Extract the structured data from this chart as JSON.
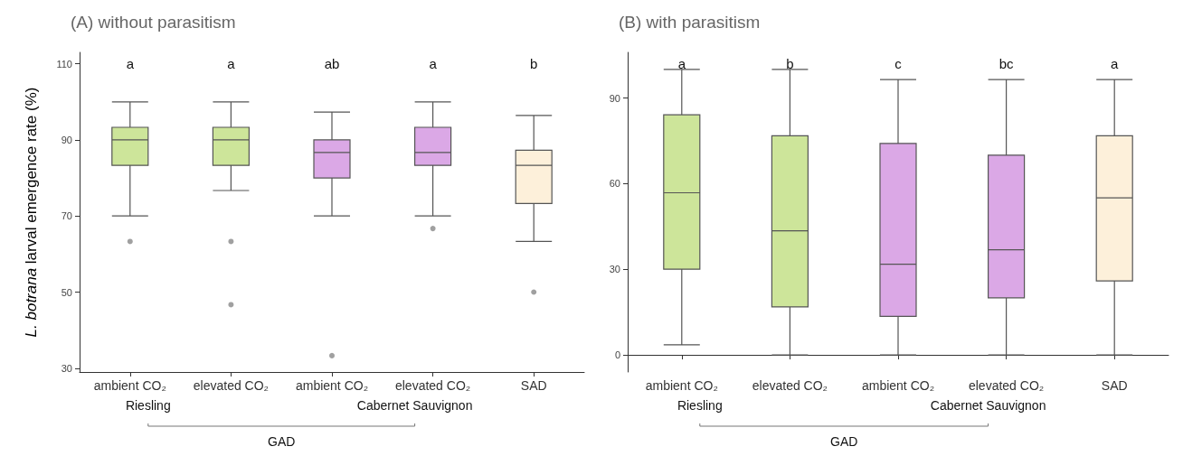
{
  "chart_data": [
    {
      "type": "box",
      "title": "(A) without parasitism",
      "ylabel": "L. botrana larval emergence rate (%)",
      "categories": [
        "ambient CO₂",
        "elevated CO₂",
        "ambient CO₂",
        "elevated CO₂",
        "SAD"
      ],
      "colors": [
        "#cde59a",
        "#cde59a",
        "#dba8e6",
        "#dba8e6",
        "#fdf0da"
      ],
      "boxes": [
        {
          "low": 70,
          "q1": 83.3,
          "median": 90,
          "q3": 93.3,
          "high": 100,
          "outliers": [
            63.3
          ]
        },
        {
          "low": 76.7,
          "q1": 83.3,
          "median": 90,
          "q3": 93.3,
          "high": 100,
          "outliers": [
            63.3,
            46.7
          ]
        },
        {
          "low": 70,
          "q1": 80,
          "median": 86.7,
          "q3": 90,
          "high": 97.3,
          "outliers": [
            33.3
          ]
        },
        {
          "low": 70,
          "q1": 83.3,
          "median": 86.7,
          "q3": 93.3,
          "high": 100,
          "outliers": [
            66.7
          ]
        },
        {
          "low": 63.3,
          "q1": 73.3,
          "median": 83.3,
          "q3": 87.3,
          "high": 96.4,
          "outliers": [
            50
          ]
        }
      ],
      "ylim": [
        29,
        113
      ],
      "yticks": [
        30,
        50,
        70,
        90,
        110
      ],
      "grid": false,
      "annotations": [
        "a",
        "a",
        "ab",
        "a",
        "b",
        "Riesling",
        "Cabernet Sauvignon",
        "GAD"
      ]
    },
    {
      "type": "box",
      "title": "(B) with parasitism",
      "categories": [
        "ambient CO₂",
        "elevated CO₂",
        "ambient CO₂",
        "elevated CO₂",
        "SAD"
      ],
      "colors": [
        "#cde59a",
        "#cde59a",
        "#dba8e6",
        "#dba8e6",
        "#fdf0da"
      ],
      "boxes": [
        {
          "low": 3.5,
          "q1": 30,
          "median": 56.8,
          "q3": 84.1,
          "high": 100
        },
        {
          "low": 0,
          "q1": 16.8,
          "median": 43.5,
          "q3": 76.8,
          "high": 100
        },
        {
          "low": 0,
          "q1": 13.5,
          "median": 31.8,
          "q3": 74.1,
          "high": 96.5
        },
        {
          "low": 0,
          "q1": 20,
          "median": 36.8,
          "q3": 70,
          "high": 96.5
        },
        {
          "low": 0,
          "q1": 25.9,
          "median": 55,
          "q3": 76.8,
          "high": 96.5
        }
      ],
      "ylim": [
        -6,
        106
      ],
      "yticks": [
        0,
        30,
        60,
        90
      ],
      "grid": false,
      "annotations": [
        "a",
        "b",
        "c",
        "bc",
        "a",
        "Riesling",
        "Cabernet Sauvignon",
        "GAD"
      ]
    }
  ]
}
